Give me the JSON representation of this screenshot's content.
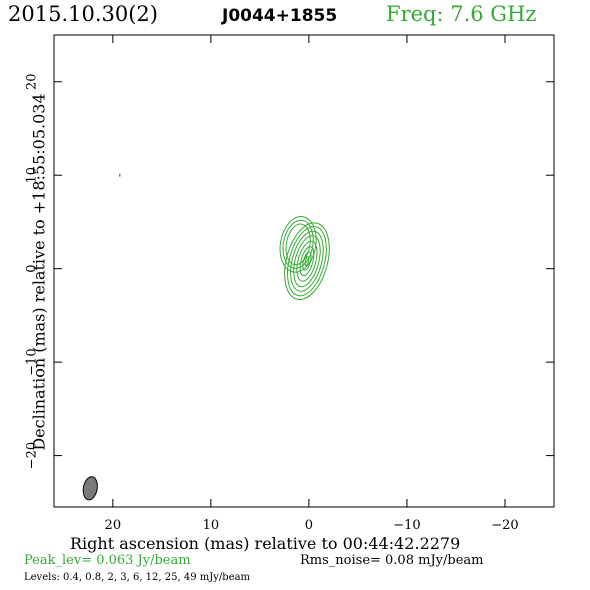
{
  "header": {
    "date": "2015.10.30(2)",
    "source": "J0044+1855",
    "freq": "Freq: 7.6 GHz"
  },
  "chart_data": {
    "type": "contour",
    "xlabel": "Right ascension (mas) relative to 00:44:42.2279",
    "ylabel": "Declination (mas) relative to +18:55:05.034",
    "xlim": [
      26,
      -25
    ],
    "ylim": [
      -25.5,
      25
    ],
    "x_ticks": [
      20,
      10,
      0,
      -10,
      -20
    ],
    "x_tick_labels": [
      "20",
      "10",
      "0",
      "−10",
      "−20"
    ],
    "y_ticks": [
      20,
      10,
      0,
      -10,
      -20
    ],
    "y_tick_labels": [
      "20",
      "10",
      "0",
      "−10",
      "−20"
    ],
    "contour_levels": [
      0.4,
      0.8,
      2,
      3,
      6,
      12,
      25,
      49
    ],
    "contour_units": "mJy/beam",
    "components": [
      {
        "x": 0.2,
        "y": 0.8,
        "pa_deg": 15,
        "contours": [
          {
            "a": 2.1,
            "b": 4.2
          },
          {
            "a": 1.8,
            "b": 3.8
          },
          {
            "a": 1.5,
            "b": 3.3
          },
          {
            "a": 1.2,
            "b": 2.8
          },
          {
            "a": 0.9,
            "b": 2.2
          },
          {
            "a": 0.6,
            "b": 1.6
          },
          {
            "a": 0.35,
            "b": 1.0
          },
          {
            "a": 0.15,
            "b": 0.5
          }
        ]
      },
      {
        "x": 1.1,
        "y": 2.6,
        "pa_deg": 10,
        "contours": [
          {
            "a": 1.8,
            "b": 3.0
          },
          {
            "a": 1.5,
            "b": 2.6
          },
          {
            "a": 1.2,
            "b": 2.2
          }
        ]
      }
    ],
    "noise_spot": {
      "x": 19.3,
      "y": 10.0
    },
    "beam": {
      "x": 22.3,
      "y": -23.5,
      "major_mas": 2.5,
      "minor_mas": 1.4,
      "pa_deg": 10
    },
    "peak_level": "Peak_lev=  0.063 Jy/beam",
    "rms_noise": "Rms_noise= 0.08 mJy/beam",
    "levels_text": "Levels: 0.4, 0.8,   2,   3,   6,  12,  25,  49 mJy/beam",
    "colors": {
      "contour": "#33aa33",
      "beam_fill": "#7a7a7a",
      "freq": "#33aa33"
    }
  }
}
